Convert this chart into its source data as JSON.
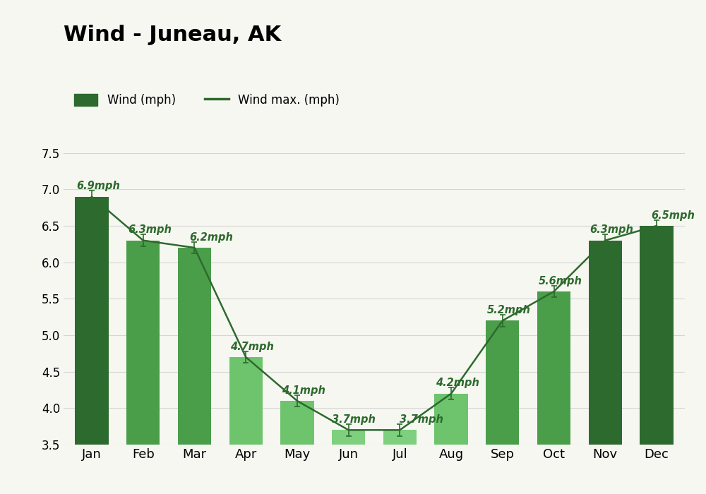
{
  "title": "Wind - Juneau, AK",
  "months": [
    "Jan",
    "Feb",
    "Mar",
    "Apr",
    "May",
    "Jun",
    "Jul",
    "Aug",
    "Sep",
    "Oct",
    "Nov",
    "Dec"
  ],
  "wind_avg": [
    6.9,
    6.3,
    6.2,
    4.7,
    4.1,
    3.7,
    3.7,
    4.2,
    5.2,
    5.6,
    6.3,
    6.5
  ],
  "wind_max": [
    6.9,
    6.3,
    6.2,
    4.7,
    4.1,
    3.7,
    3.7,
    4.2,
    5.2,
    5.6,
    6.3,
    6.5
  ],
  "bar_colors": [
    "#2d6a2d",
    "#4a9e4a",
    "#4a9e4a",
    "#6dc46d",
    "#6dc46d",
    "#7ed07e",
    "#7ed07e",
    "#6dc46d",
    "#4a9e4a",
    "#4a9e4a",
    "#2d6a2d",
    "#2d6a2d"
  ],
  "legend_bar_color": "#2d6a2d",
  "line_color": "#2d6a2d",
  "label_color": "#2d6a2d",
  "ylim": [
    3.5,
    7.7
  ],
  "yticks": [
    3.5,
    4.0,
    4.5,
    5.0,
    5.5,
    6.0,
    6.5,
    7.0,
    7.5
  ],
  "bg_color": "#f7f7f2",
  "title_fontsize": 22,
  "legend_label_bar": "Wind (mph)",
  "legend_label_line": "Wind max. (mph)",
  "bar_width": 0.65,
  "grid_color": "#d5d5d5",
  "annotation_fontsize": 10.5
}
